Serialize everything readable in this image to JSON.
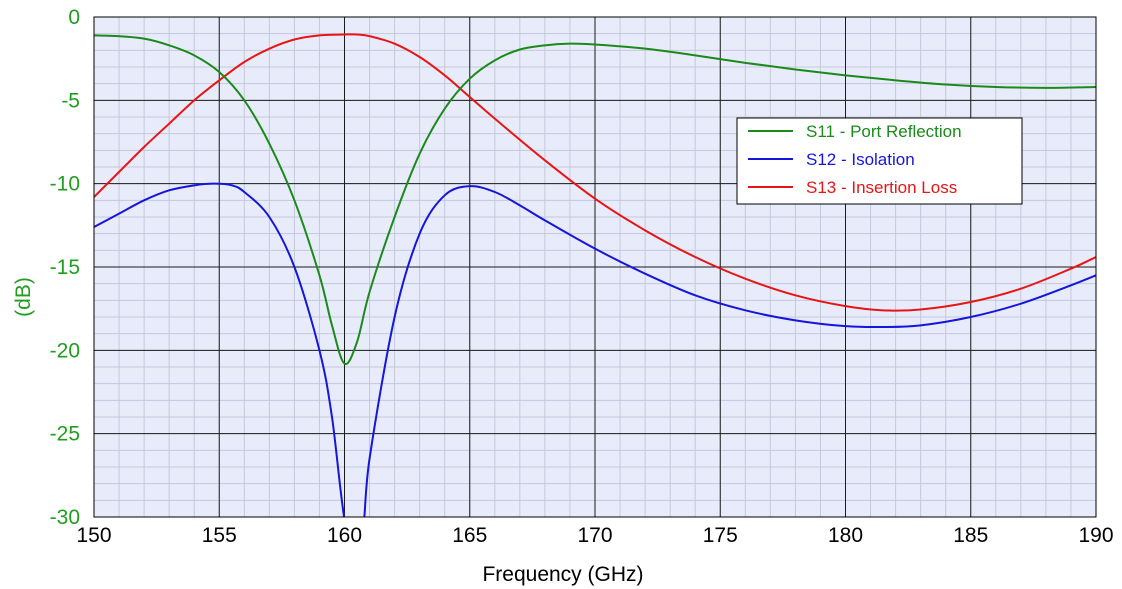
{
  "chart_data": {
    "type": "line",
    "xlabel": "Frequency (GHz)",
    "ylabel": "(dB)",
    "xlim": [
      150,
      190
    ],
    "ylim": [
      -30,
      0
    ],
    "x_major_ticks": [
      150,
      155,
      160,
      165,
      170,
      175,
      180,
      185,
      190
    ],
    "y_major_ticks": [
      0,
      -5,
      -10,
      -15,
      -20,
      -25,
      -30
    ],
    "x_minor_step": 1,
    "y_minor_step": 1,
    "grid": true,
    "plot_background": "#e8ecfa",
    "legend_position": "right",
    "series": [
      {
        "name": "S11 - Port Reflection",
        "color": "#1a8a1a",
        "x": [
          150,
          151,
          152,
          153,
          154,
          155,
          156,
          157,
          158,
          159,
          159.5,
          160,
          160.5,
          161,
          162,
          163,
          164,
          165,
          166,
          167,
          168,
          169,
          170,
          172,
          174,
          176,
          178,
          180,
          182,
          184,
          186,
          188,
          190
        ],
        "y": [
          -1.1,
          -1.15,
          -1.3,
          -1.7,
          -2.3,
          -3.3,
          -5.0,
          -7.6,
          -11.0,
          -15.5,
          -18.5,
          -20.8,
          -19.5,
          -16.5,
          -12.0,
          -8.2,
          -5.5,
          -3.7,
          -2.6,
          -1.95,
          -1.7,
          -1.6,
          -1.65,
          -1.9,
          -2.3,
          -2.75,
          -3.15,
          -3.5,
          -3.8,
          -4.05,
          -4.2,
          -4.25,
          -4.2
        ]
      },
      {
        "name": "S12 - Isolation",
        "color": "#1515dc",
        "x": [
          150,
          151,
          152,
          153,
          154,
          154.8,
          155.5,
          156,
          157,
          158,
          159,
          159.5,
          160.1,
          160.7,
          161,
          162,
          163,
          164,
          165,
          166,
          167,
          168,
          170,
          172,
          174,
          176,
          178,
          180,
          181.5,
          183,
          185,
          187,
          189,
          190
        ],
        "y": [
          -12.6,
          -11.8,
          -11.0,
          -10.4,
          -10.1,
          -10.0,
          -10.1,
          -10.5,
          -12.0,
          -15.0,
          -20.0,
          -24.0,
          -31.0,
          -31.0,
          -26.5,
          -18.0,
          -13.0,
          -10.7,
          -10.15,
          -10.5,
          -11.3,
          -12.2,
          -13.9,
          -15.4,
          -16.7,
          -17.6,
          -18.2,
          -18.55,
          -18.6,
          -18.5,
          -18.0,
          -17.2,
          -16.1,
          -15.5
        ]
      },
      {
        "name": "S13 - Insertion Loss",
        "color": "#e81515",
        "x": [
          150,
          151,
          152,
          153,
          154,
          155,
          156,
          157,
          158,
          159,
          160,
          160.5,
          161,
          162,
          163,
          164,
          165,
          166,
          168,
          170,
          172,
          174,
          176,
          178,
          180,
          181.5,
          183,
          185,
          187,
          189,
          190
        ],
        "y": [
          -10.8,
          -9.3,
          -7.8,
          -6.4,
          -5.0,
          -3.8,
          -2.7,
          -1.9,
          -1.35,
          -1.1,
          -1.05,
          -1.05,
          -1.15,
          -1.6,
          -2.4,
          -3.5,
          -4.8,
          -6.1,
          -8.6,
          -10.9,
          -12.8,
          -14.4,
          -15.7,
          -16.7,
          -17.35,
          -17.6,
          -17.55,
          -17.1,
          -16.3,
          -15.1,
          -14.4
        ]
      }
    ]
  }
}
